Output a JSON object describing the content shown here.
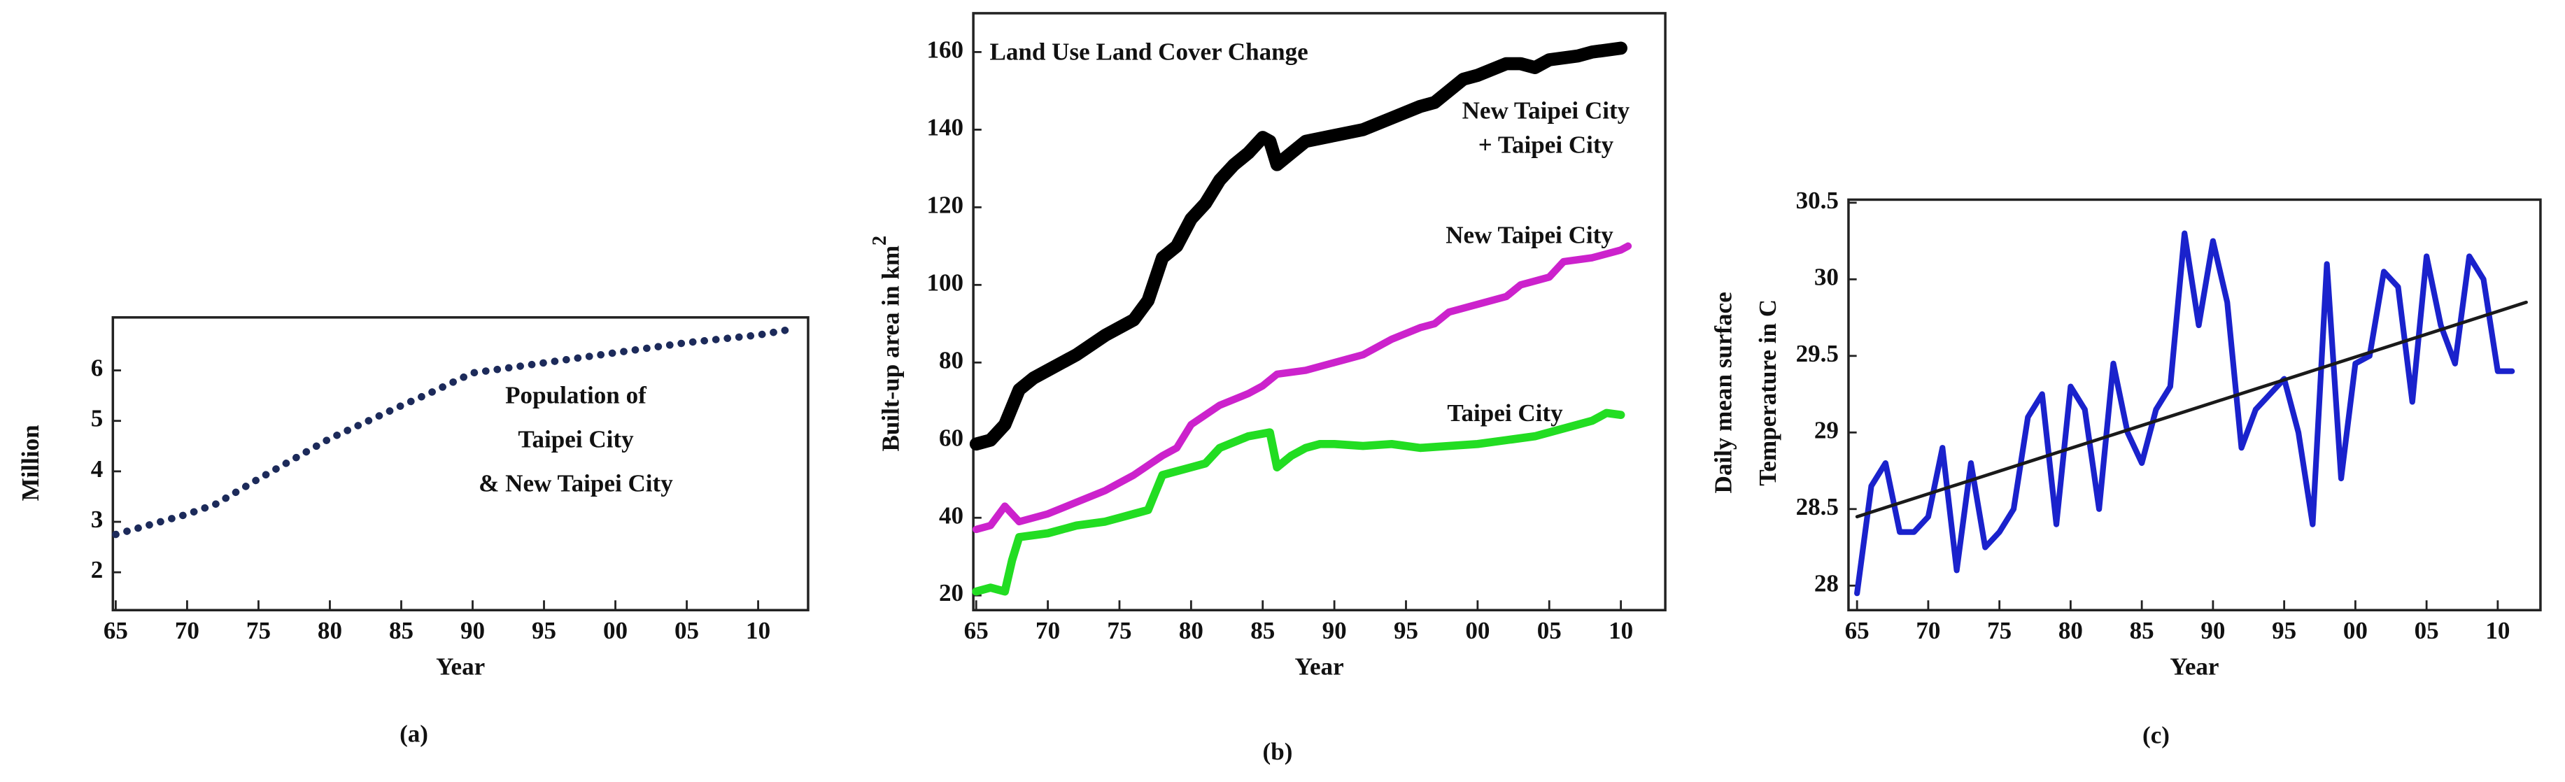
{
  "chart_data": [
    {
      "type": "line",
      "caption": "(a)",
      "xlabel": "Year",
      "ylabel": "Million",
      "annotation": [
        "Population of",
        "Taipei City",
        "& New Taipei City"
      ],
      "xlim": [
        1964.8,
        2013.5
      ],
      "ylim": [
        1.25,
        7.05
      ],
      "xticks": [
        {
          "value": 1965,
          "label": "65"
        },
        {
          "value": 1970,
          "label": "70"
        },
        {
          "value": 1975,
          "label": "75"
        },
        {
          "value": 1980,
          "label": "80"
        },
        {
          "value": 1985,
          "label": "85"
        },
        {
          "value": 1990,
          "label": "90"
        },
        {
          "value": 1995,
          "label": "95"
        },
        {
          "value": 2000,
          "label": "00"
        },
        {
          "value": 2005,
          "label": "05"
        },
        {
          "value": 2010,
          "label": "10"
        }
      ],
      "yticks": [
        2,
        3,
        4,
        5,
        6
      ],
      "series": [
        {
          "color": "#1c2a5a",
          "dashed": true,
          "x": [
            1965,
            1970,
            1972,
            1975,
            1980,
            1985,
            1987,
            1990,
            1995,
            2000,
            2005,
            2010,
            2012
          ],
          "values": [
            2.75,
            3.15,
            3.35,
            3.85,
            4.65,
            5.3,
            5.55,
            5.95,
            6.15,
            6.35,
            6.55,
            6.7,
            6.8
          ]
        }
      ]
    },
    {
      "type": "line",
      "caption": "(b)",
      "xlabel": "Year",
      "ylabel": "Built-up area in km",
      "ylabel_sup": "2",
      "title": "Land Use Land Cover Change",
      "xlim": [
        1964.8,
        2013.1
      ],
      "ylim": [
        16.2,
        170
      ],
      "xticks": [
        {
          "value": 1965,
          "label": "65"
        },
        {
          "value": 1970,
          "label": "70"
        },
        {
          "value": 1975,
          "label": "75"
        },
        {
          "value": 1980,
          "label": "80"
        },
        {
          "value": 1985,
          "label": "85"
        },
        {
          "value": 1990,
          "label": "90"
        },
        {
          "value": 1995,
          "label": "95"
        },
        {
          "value": 2000,
          "label": "00"
        },
        {
          "value": 2005,
          "label": "05"
        },
        {
          "value": 2010,
          "label": "10"
        }
      ],
      "yticks": [
        20,
        40,
        60,
        80,
        100,
        120,
        140,
        160
      ],
      "series": [
        {
          "name_lines": [
            "New Taipei City",
            "+ Taipei City"
          ],
          "color": "#000000",
          "width": 8,
          "x": [
            1965,
            1966,
            1967,
            1968,
            1969,
            1970,
            1972,
            1974,
            1976,
            1977,
            1978,
            1979,
            1980,
            1981,
            1982,
            1983,
            1984,
            1985,
            1985.5,
            1986,
            1987,
            1988,
            1990,
            1992,
            1994,
            1996,
            1997,
            1998,
            1999,
            2000,
            2002,
            2003,
            2004,
            2005,
            2007,
            2008,
            2010
          ],
          "values": [
            59,
            60,
            64,
            73,
            76,
            78,
            82,
            87,
            91,
            96,
            107,
            110,
            117,
            121,
            127,
            131,
            134,
            138,
            137,
            131,
            134,
            137,
            138.5,
            140,
            143,
            146,
            147,
            150,
            153,
            154,
            157,
            157,
            156,
            158,
            159,
            160,
            161
          ]
        },
        {
          "name_lines": [
            "New Taipei City"
          ],
          "color": "#cc22cc",
          "width": 4.5,
          "x": [
            1965,
            1966,
            1967,
            1968,
            1970,
            1972,
            1974,
            1975,
            1976,
            1978,
            1979,
            1980,
            1982,
            1984,
            1985,
            1986,
            1988,
            1990,
            1992,
            1994,
            1996,
            1997,
            1998,
            2000,
            2002,
            2003,
            2005,
            2006,
            2008,
            2010,
            2010.5
          ],
          "values": [
            37,
            38,
            43,
            39,
            41,
            44,
            47,
            49,
            51,
            56,
            58,
            64,
            69,
            72,
            74,
            77,
            78,
            80,
            82,
            86,
            89,
            90,
            93,
            95,
            97,
            100,
            102,
            106,
            107,
            109,
            110
          ]
        },
        {
          "name_lines": [
            "Taipei City"
          ],
          "color": "#22dd22",
          "width": 5,
          "x": [
            1965,
            1966,
            1967,
            1967.5,
            1968,
            1970,
            1972,
            1974,
            1975,
            1976,
            1977,
            1978,
            1980,
            1981,
            1982,
            1984,
            1985.5,
            1986,
            1987,
            1988,
            1989,
            1990,
            1992,
            1994,
            1996,
            1998,
            2000,
            2002,
            2004,
            2006,
            2008,
            2009,
            2010
          ],
          "values": [
            21,
            22,
            21,
            29,
            35,
            36,
            38,
            39,
            40,
            41,
            42,
            51,
            53,
            54,
            58,
            61,
            62,
            53,
            56,
            58,
            59,
            59,
            58.5,
            59,
            58,
            58.5,
            59,
            60,
            61,
            63,
            65,
            67,
            66.5
          ]
        }
      ]
    },
    {
      "type": "line",
      "caption": "(c)",
      "xlabel": "Year",
      "ylabel_lines": [
        "Daily mean surface",
        "Temperature in C"
      ],
      "xlim": [
        1964.4,
        2013
      ],
      "ylim": [
        27.84,
        30.52
      ],
      "xticks": [
        {
          "value": 1965,
          "label": "65"
        },
        {
          "value": 1970,
          "label": "70"
        },
        {
          "value": 1975,
          "label": "75"
        },
        {
          "value": 1980,
          "label": "80"
        },
        {
          "value": 1985,
          "label": "85"
        },
        {
          "value": 1990,
          "label": "90"
        },
        {
          "value": 1995,
          "label": "95"
        },
        {
          "value": 2000,
          "label": "00"
        },
        {
          "value": 2005,
          "label": "05"
        },
        {
          "value": 2010,
          "label": "10"
        }
      ],
      "yticks": [
        28,
        28.5,
        29,
        29.5,
        30,
        30.5
      ],
      "series": [
        {
          "color": "#1a22cc",
          "width": 3.5,
          "x": [
            1965,
            1966,
            1967,
            1968,
            1969,
            1970,
            1971,
            1972,
            1973,
            1974,
            1975,
            1976,
            1977,
            1978,
            1979,
            1980,
            1981,
            1982,
            1983,
            1984,
            1985,
            1986,
            1987,
            1988,
            1989,
            1990,
            1991,
            1992,
            1993,
            1994,
            1995,
            1996,
            1997,
            1998,
            1999,
            2000,
            2001,
            2002,
            2003,
            2004,
            2005,
            2006,
            2007,
            2008,
            2009,
            2010,
            2011
          ],
          "values": [
            27.95,
            28.65,
            28.8,
            28.35,
            28.35,
            28.45,
            28.9,
            28.1,
            28.8,
            28.25,
            28.35,
            28.5,
            29.1,
            29.25,
            28.4,
            29.3,
            29.15,
            28.5,
            29.45,
            29.0,
            28.8,
            29.15,
            29.3,
            30.3,
            29.7,
            30.25,
            29.85,
            28.9,
            29.15,
            29.25,
            29.35,
            29.0,
            28.4,
            30.1,
            28.7,
            29.45,
            29.5,
            30.05,
            29.95,
            29.2,
            30.15,
            29.7,
            29.45,
            30.15,
            30.0,
            29.4,
            29.4
          ]
        },
        {
          "color": "#1a1a1a",
          "width": 2,
          "x": [
            1965,
            2012
          ],
          "values": [
            28.45,
            29.85
          ]
        }
      ]
    }
  ]
}
